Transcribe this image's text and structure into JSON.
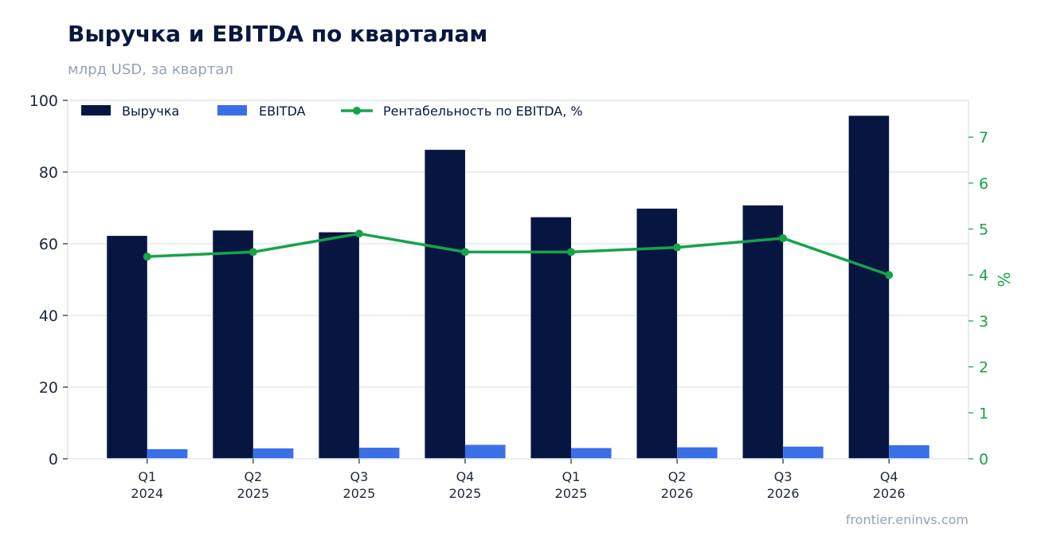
{
  "chart_data": {
    "type": "bar",
    "title": "Выручка и EBITDA по кварталам",
    "subtitle": "млрд USD, за квартал",
    "categories": [
      [
        "Q1",
        "2024"
      ],
      [
        "Q2",
        "2025"
      ],
      [
        "Q3",
        "2025"
      ],
      [
        "Q4",
        "2025"
      ],
      [
        "Q1",
        "2025"
      ],
      [
        "Q2",
        "2026"
      ],
      [
        "Q3",
        "2026"
      ],
      [
        "Q4",
        "2026"
      ]
    ],
    "series": [
      {
        "name": "Выручка",
        "type": "bar",
        "axis": "left",
        "color": "#061640",
        "values": [
          62.2,
          63.7,
          63.2,
          86.2,
          67.4,
          69.8,
          70.7,
          95.7
        ]
      },
      {
        "name": "EBITDA",
        "type": "bar",
        "axis": "left",
        "color": "#3b6fe8",
        "values": [
          2.7,
          2.9,
          3.1,
          3.9,
          3.0,
          3.2,
          3.4,
          3.8
        ]
      },
      {
        "name": "Рентабельность по EBITDA, %",
        "type": "line",
        "axis": "right",
        "color": "#16a34a",
        "values": [
          4.4,
          4.5,
          4.9,
          4.5,
          4.5,
          4.6,
          4.8,
          4.0
        ]
      }
    ],
    "ylim": [
      0,
      100
    ],
    "yticks": [
      0,
      20,
      40,
      60,
      80,
      100
    ],
    "y2lim": [
      0,
      7.8
    ],
    "y2ticks": [
      0,
      1,
      2,
      3,
      4,
      5,
      6,
      7
    ],
    "ylabel": "",
    "y2label": "%",
    "xlabel": "",
    "grid": true,
    "legend_position": "top-left",
    "source": "frontier.eninvs.com"
  }
}
